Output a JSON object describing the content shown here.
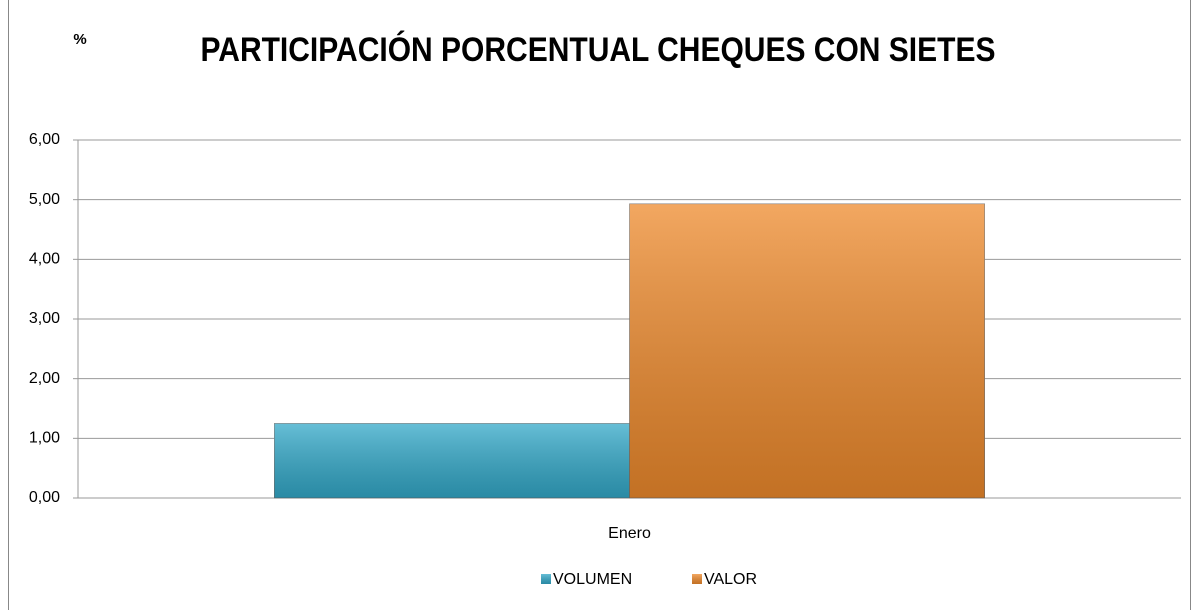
{
  "chart_data": {
    "type": "bar",
    "title": "PARTICIPACIÓN PORCENTUAL CHEQUES CON SIETES",
    "y_label": "%",
    "categories": [
      "Enero"
    ],
    "series": [
      {
        "name": "VOLUMEN",
        "color": "#33a9c9",
        "values": [
          1.25
        ]
      },
      {
        "name": "VALOR",
        "color": "#ee8a2c",
        "values": [
          4.93
        ]
      }
    ],
    "ylim": [
      0,
      6
    ],
    "yticks": [
      {
        "value": 0,
        "label": "0,00"
      },
      {
        "value": 1,
        "label": "1,00"
      },
      {
        "value": 2,
        "label": "2,00"
      },
      {
        "value": 3,
        "label": "3,00"
      },
      {
        "value": 4,
        "label": "4,00"
      },
      {
        "value": 5,
        "label": "5,00"
      },
      {
        "value": 6,
        "label": "6,00"
      }
    ],
    "grid": true,
    "legend": "bottom"
  }
}
